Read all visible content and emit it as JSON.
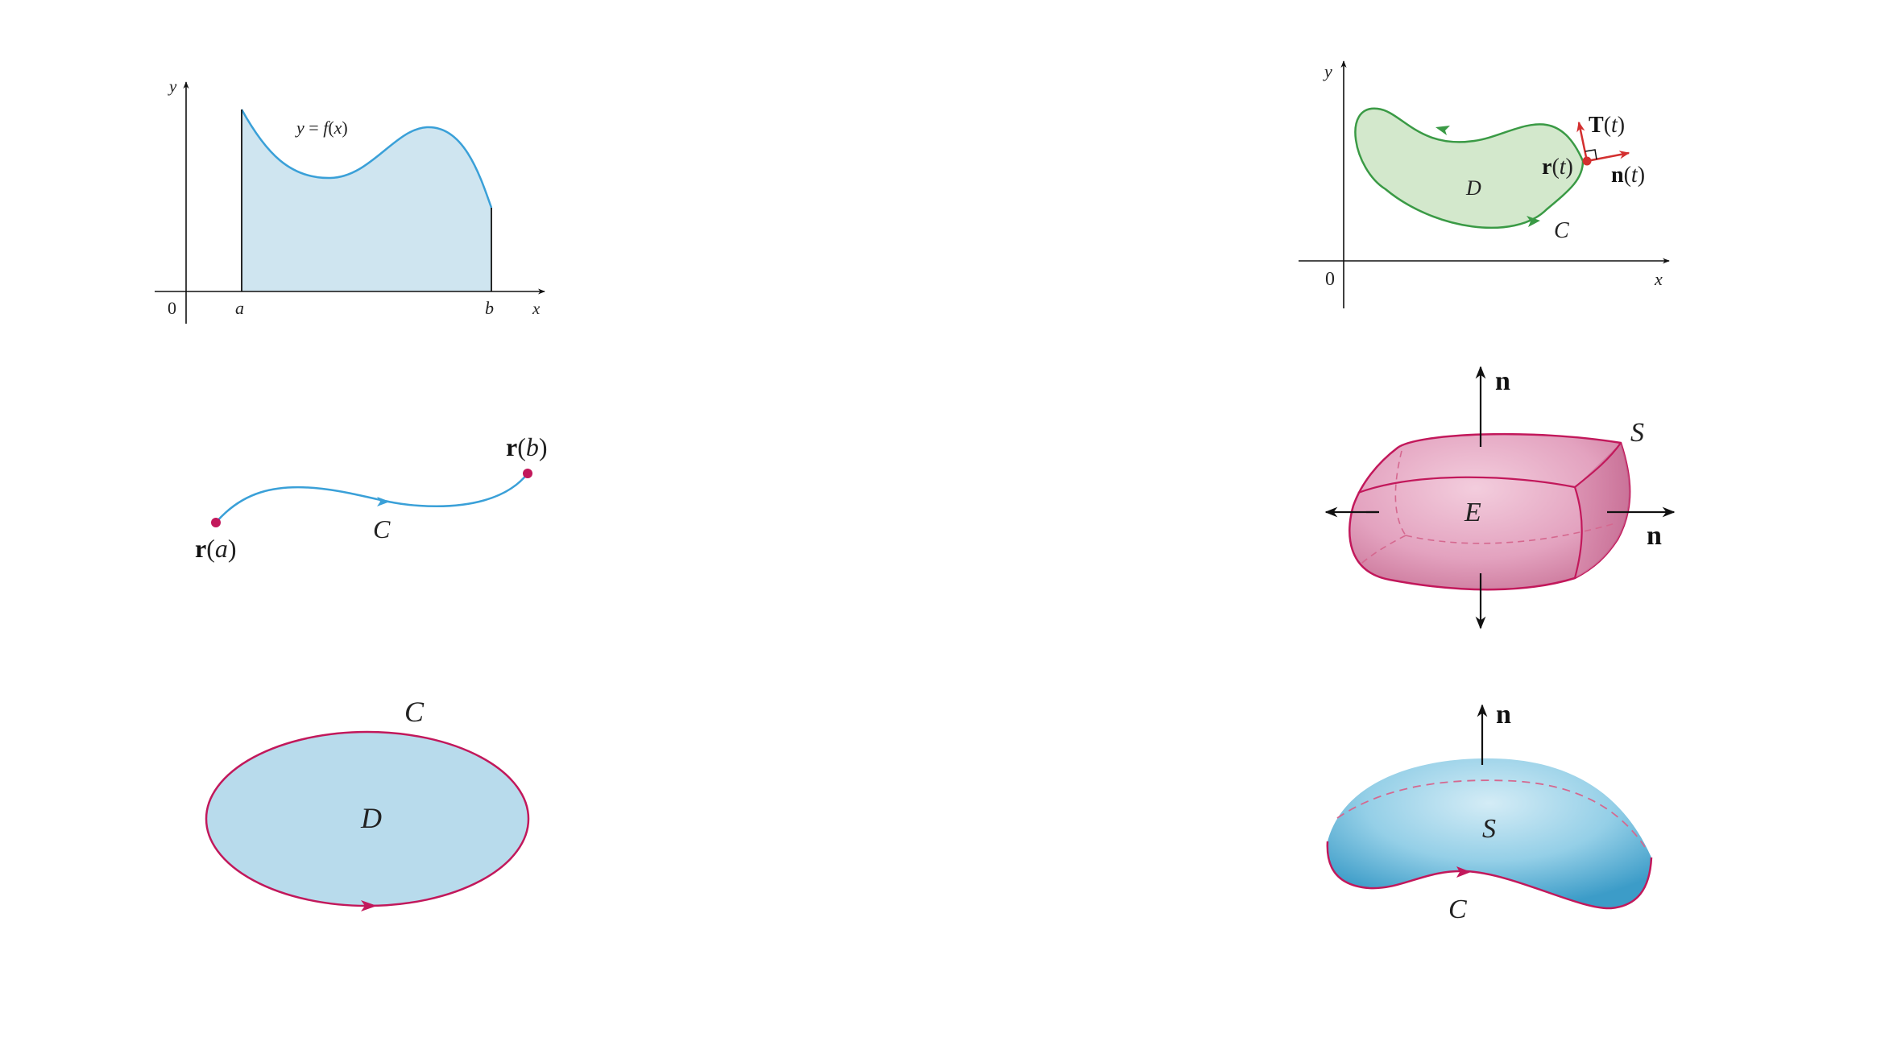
{
  "fig_integral": {
    "y_axis": "y",
    "x_axis": "x",
    "origin": "0",
    "a": "a",
    "b": "b",
    "curve_lhs": "y",
    "curve_eq": " = ",
    "curve_f": "f",
    "curve_open": "(",
    "curve_x": "x",
    "curve_close": ")",
    "fill_color": "#cfe5f0",
    "stroke_color": "#3aa0d8"
  },
  "fig_line": {
    "start_bold": "r",
    "start_open": "(",
    "start_param": "a",
    "start_close": ")",
    "end_bold": "r",
    "end_open": "(",
    "end_param": "b",
    "end_close": ")",
    "curve_label": "C",
    "curve_color": "#3aa0d8",
    "point_color": "#c2185b"
  },
  "fig_green": {
    "curve_label": "C",
    "region_label": "D",
    "fill_color": "#b8dbec",
    "stroke_color": "#c2185b"
  },
  "fig_flux": {
    "y_axis": "y",
    "x_axis": "x",
    "origin": "0",
    "region_label": "D",
    "curve_label": "C",
    "r_bold": "r",
    "r_open": "(",
    "r_t": "t",
    "r_close": ")",
    "T_bold": "T",
    "T_open": "(",
    "T_t": "t",
    "T_close": ")",
    "n_bold": "n",
    "n_open": "(",
    "n_t": "t",
    "n_close": ")",
    "fill_color": "#d3e8cc",
    "stroke_color": "#3a9a45",
    "vector_color": "#d32f2f"
  },
  "fig_divergence": {
    "solid_label": "E",
    "surface_label": "S",
    "normal_top": "n",
    "normal_right": "n",
    "fill_color": "#e7a9c4",
    "stroke_color": "#c2185b"
  },
  "fig_stokes": {
    "surface_label": "S",
    "boundary_label": "C",
    "normal_label": "n",
    "fill_color": "#8ccbe6",
    "stroke_color": "#c2185b"
  }
}
